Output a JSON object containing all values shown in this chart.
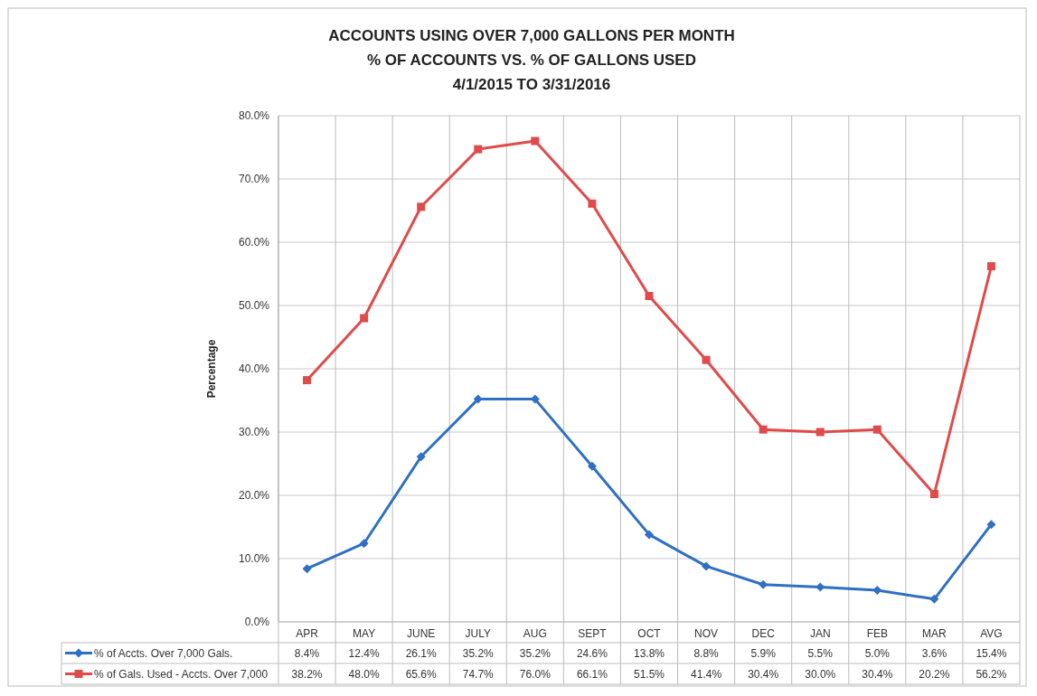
{
  "chart_data": {
    "type": "line",
    "title": "ACCOUNTS USING OVER 7,000 GALLONS PER MONTH\n% OF ACCOUNTS VS. % OF GALLONS USED\n4/1/2015 TO 3/31/2016",
    "ylabel": "Percentage",
    "categories": [
      "APR",
      "MAY",
      "JUNE",
      "JULY",
      "AUG",
      "SEPT",
      "OCT",
      "NOV",
      "DEC",
      "JAN",
      "FEB",
      "MAR",
      "AVG"
    ],
    "ylim": [
      0,
      80
    ],
    "yticks": [
      {
        "value": 0,
        "label": "0.0%"
      },
      {
        "value": 10,
        "label": "10.0%"
      },
      {
        "value": 20,
        "label": "20.0%"
      },
      {
        "value": 30,
        "label": "30.0%"
      },
      {
        "value": 40,
        "label": "40.0%"
      },
      {
        "value": 50,
        "label": "50.0%"
      },
      {
        "value": 60,
        "label": "60.0%"
      },
      {
        "value": 70,
        "label": "70.0%"
      },
      {
        "value": 80,
        "label": "80.0%"
      }
    ],
    "grid": "y",
    "legend": "bottom",
    "series": [
      {
        "name": "% of Accts. Over 7,000 Gals.",
        "color": "#2f6fc4",
        "marker": "diamond",
        "values": [
          8.4,
          12.4,
          26.1,
          35.2,
          35.2,
          24.6,
          13.8,
          8.8,
          5.9,
          5.5,
          5.0,
          3.6,
          15.4
        ],
        "value_labels": [
          "8.4%",
          "12.4%",
          "26.1%",
          "35.2%",
          "35.2%",
          "24.6%",
          "13.8%",
          "8.8%",
          "5.9%",
          "5.5%",
          "5.0%",
          "3.6%",
          "15.4%"
        ]
      },
      {
        "name": "% of Gals. Used - Accts. Over 7,000",
        "color": "#e04a4a",
        "marker": "square",
        "values": [
          38.2,
          48.0,
          65.6,
          74.7,
          76.0,
          66.1,
          51.5,
          41.4,
          30.4,
          30.0,
          30.4,
          20.2,
          56.2
        ],
        "value_labels": [
          "38.2%",
          "48.0%",
          "65.6%",
          "74.7%",
          "76.0%",
          "66.1%",
          "51.5%",
          "41.4%",
          "30.4%",
          "30.0%",
          "30.4%",
          "20.2%",
          "56.2%"
        ]
      }
    ]
  }
}
